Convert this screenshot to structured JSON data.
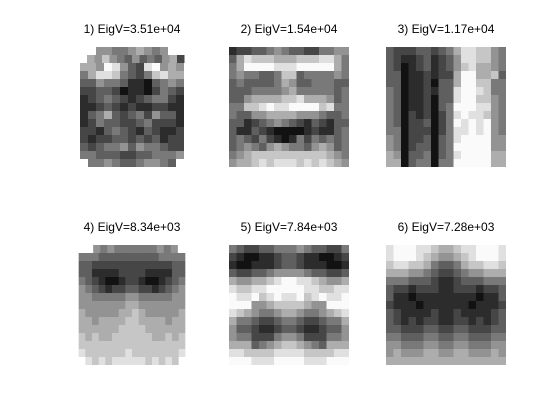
{
  "figure": {
    "background": "#ffffff",
    "panels": [
      {
        "title": "1) EigV=3.51e+04",
        "rows": [
          "WWW554456545WWW",
          "WW6575435343562W",
          "W6659853289565W",
          "W4688743247866W",
          "W3354431103454W",
          "W2233201102432W",
          "W1234321234421W",
          "W1123212112211W",
          "W1346323425331W",
          "W1243322342221W",
          "W2213432132112W",
          "W2122332323122W",
          "W3234453544322W",
          "W4433322334445W",
          "WW44543345543WW"
        ]
      },
      {
        "title": "2) EigV=1.54e+04",
        "rows": [
          "1223345433224455",
          "3687776667778864",
          "4699998889999964",
          "4544334773444454",
          "3433334653344433",
          "3334444564444434",
          "3356666778666534",
          "4477898899997844",
          "4335566665554334",
          "3312345432132133",
          "3113210000121134",
          "3432421014243434",
          "3454356544356534",
          "4567777777777654",
          "5667878887878765"
        ]
      },
      {
        "title": "3) EigV=1.17e+04",
        "rows": [
          "3222332346887754",
          "3211231235887754",
          "3201231235786654",
          "3301121226996673",
          "3301120336997744",
          "4301121338998744",
          "4301120338997754",
          "4301120349998854",
          "4302120248988754",
          "4302230249898954",
          "4402220248898954",
          "5402230348999955",
          "5402330349999955",
          "6503340348999966",
          "6603440449999966"
        ]
      },
      {
        "title": "4) EigV=8.34e+03",
        "rows": [
          "WWW545444444545WW",
          "W4443333333334444W",
          "W3322222222222233W",
          "W3311112222111133W",
          "W4321001221001234W",
          "W5432122332212345W",
          "W5544444554444455W",
          "W5555555665555555W",
          "W6555556676555556W",
          "W6656666776666566W",
          "W6666667777666666W",
          "W7676677777766767W",
          "W7777777777777777W",
          "W8777777877777778W",
          "WW87878888878787WW"
        ]
      },
      {
        "title": "5) EigV=7.84e+03",
        "rows": [
          "4322334445433224",
          "2100112332110012",
          "1001112332111001",
          "3223345555433223",
          "6556678998876556",
          "8778899999887788",
          "9889789889789889",
          "9995567777655999",
          "8765445665445678",
          "6443223443223446",
          "5332112332112335",
          "5442224554222445",
          "6663456776543666",
          "8877778888777788",
          "9998889999888999"
        ]
      },
      {
        "title": "6) EigV=7.28e+03",
        "rows": [
          "8999887667889998",
          "8999876556789998",
          "7887764334677887",
          "6665543223455666",
          "4443332112333444",
          "3221222112221223",
          "3110111111110113",
          "2111011111101112",
          "3211112112111123",
          "3212122112212123",
          "3322233223322233",
          "4433344334433344",
          "5544455445544455",
          "5655566556655565",
          "6666666666666666"
        ]
      }
    ]
  }
}
